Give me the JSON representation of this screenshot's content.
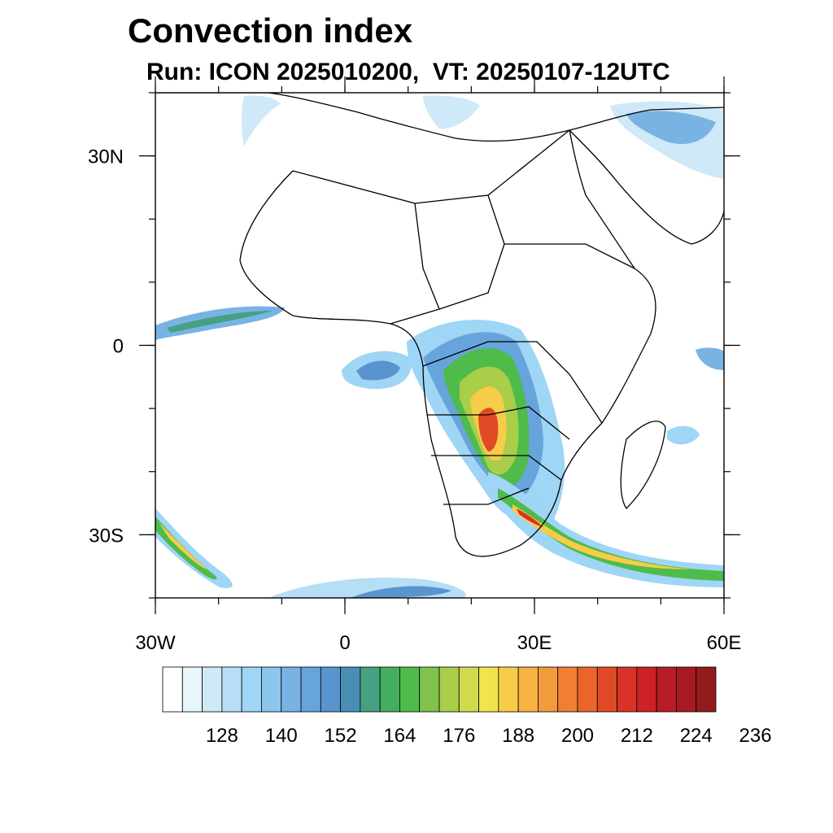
{
  "header": {
    "title": "Convection index",
    "subtitle": "Run: ICON 2025010200,  VT: 20250107-12UTC"
  },
  "map": {
    "lon_range": [
      -30,
      60
    ],
    "lat_range": [
      -40,
      40
    ],
    "x_ticks": [
      {
        "lon": -30,
        "label": "30W"
      },
      {
        "lon": 0,
        "label": "0"
      },
      {
        "lon": 30,
        "label": "30E"
      },
      {
        "lon": 60,
        "label": "60E"
      }
    ],
    "y_ticks": [
      {
        "lat": 30,
        "label": "30N"
      },
      {
        "lat": 0,
        "label": "0"
      },
      {
        "lat": -30,
        "label": "30S"
      }
    ]
  },
  "colorbar": {
    "colors": [
      "#ffffff",
      "#e9f5fc",
      "#cfe9f8",
      "#b6def5",
      "#9fd5f5",
      "#8cc6ec",
      "#78b3e4",
      "#68a4dc",
      "#5a94cf",
      "#4b8eb5",
      "#46a082",
      "#45ae5e",
      "#4fbb4b",
      "#80c24c",
      "#aacd4a",
      "#d0da4e",
      "#f1e34e",
      "#f6cc48",
      "#f6b344",
      "#f39a3c",
      "#f07f33",
      "#eb642c",
      "#e14a27",
      "#d93227",
      "#cc2227",
      "#b81c26",
      "#a71a23",
      "#931a1d"
    ],
    "labels": [
      "128",
      "140",
      "152",
      "164",
      "176",
      "188",
      "200",
      "212",
      "224",
      "236"
    ]
  }
}
